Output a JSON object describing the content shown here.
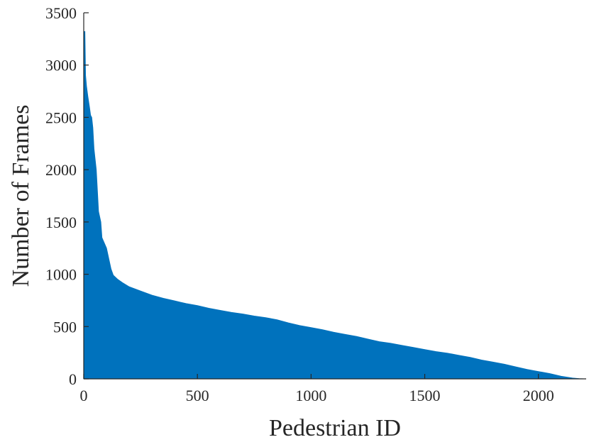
{
  "chart_data": {
    "type": "area",
    "title": "",
    "xlabel": "Pedestrian ID",
    "ylabel": "Number of  Frames",
    "xlim": [
      0,
      2210
    ],
    "ylim": [
      0,
      3500
    ],
    "x_ticks": [
      0,
      500,
      1000,
      1500,
      2000
    ],
    "y_ticks": [
      0,
      500,
      1000,
      1500,
      2000,
      2500,
      3000,
      3500
    ],
    "grid": false,
    "legend": "none",
    "colors": {
      "fill": "#0072BD",
      "axis": "#262626",
      "background": "#ffffff"
    },
    "series": [
      {
        "x": [
          0,
          5,
          8,
          12,
          18,
          25,
          30,
          35,
          40,
          45,
          50,
          55,
          60,
          65,
          70,
          75,
          80,
          90,
          100,
          110,
          120,
          130,
          150,
          170,
          200,
          250,
          300,
          350,
          400,
          450,
          500,
          550,
          600,
          650,
          700,
          750,
          800,
          850,
          900,
          950,
          1000,
          1050,
          1100,
          1150,
          1200,
          1250,
          1300,
          1350,
          1400,
          1450,
          1500,
          1550,
          1600,
          1650,
          1700,
          1750,
          1800,
          1850,
          1900,
          1950,
          2000,
          2050,
          2100,
          2150,
          2180,
          2200,
          2210
        ],
        "values": [
          3320,
          3320,
          2900,
          2800,
          2700,
          2600,
          2520,
          2500,
          2400,
          2200,
          2100,
          2000,
          1800,
          1600,
          1550,
          1500,
          1350,
          1300,
          1250,
          1150,
          1050,
          990,
          950,
          920,
          880,
          840,
          800,
          770,
          745,
          720,
          700,
          675,
          655,
          635,
          620,
          600,
          585,
          565,
          535,
          510,
          490,
          470,
          445,
          425,
          405,
          380,
          355,
          340,
          320,
          300,
          280,
          260,
          245,
          225,
          205,
          180,
          160,
          140,
          115,
          90,
          70,
          50,
          25,
          8,
          2,
          0,
          0
        ]
      }
    ]
  }
}
